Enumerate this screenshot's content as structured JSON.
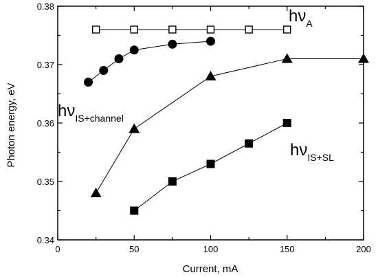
{
  "chart_data": {
    "type": "scatter",
    "xlabel": "Current, mA",
    "ylabel": "Photon energy, eV",
    "xlim": [
      0,
      200
    ],
    "ylim": [
      0.34,
      0.38
    ],
    "x_ticks": [
      0,
      50,
      100,
      150,
      200
    ],
    "y_ticks": [
      0.34,
      0.35,
      0.36,
      0.37,
      0.38
    ],
    "x_tick_labels": [
      "0",
      "50",
      "100",
      "150",
      "200"
    ],
    "y_tick_labels": [
      "0.34",
      "0.35",
      "0.36",
      "0.37",
      "0.38"
    ],
    "grid": false,
    "series": [
      {
        "marker": "open-square",
        "x": [
          25,
          50,
          75,
          100,
          125,
          150
        ],
        "y": [
          0.376,
          0.376,
          0.376,
          0.376,
          0.376,
          0.376
        ]
      },
      {
        "marker": "filled-circle",
        "x": [
          20,
          30,
          40,
          50,
          75,
          100
        ],
        "y": [
          0.367,
          0.369,
          0.371,
          0.3725,
          0.3735,
          0.374
        ]
      },
      {
        "marker": "filled-triangle",
        "x": [
          25,
          50,
          100,
          150,
          200
        ],
        "y": [
          0.348,
          0.359,
          0.368,
          0.371,
          0.371
        ]
      },
      {
        "marker": "filled-square",
        "x": [
          50,
          75,
          100,
          125,
          150
        ],
        "y": [
          0.345,
          0.35,
          0.353,
          0.3565,
          0.36
        ]
      }
    ],
    "annotations": [
      {
        "main": "hν",
        "sub": "A"
      },
      {
        "main": "hν",
        "sub": "IS+channel"
      },
      {
        "main": "hν",
        "sub": "IS+SL"
      }
    ]
  }
}
